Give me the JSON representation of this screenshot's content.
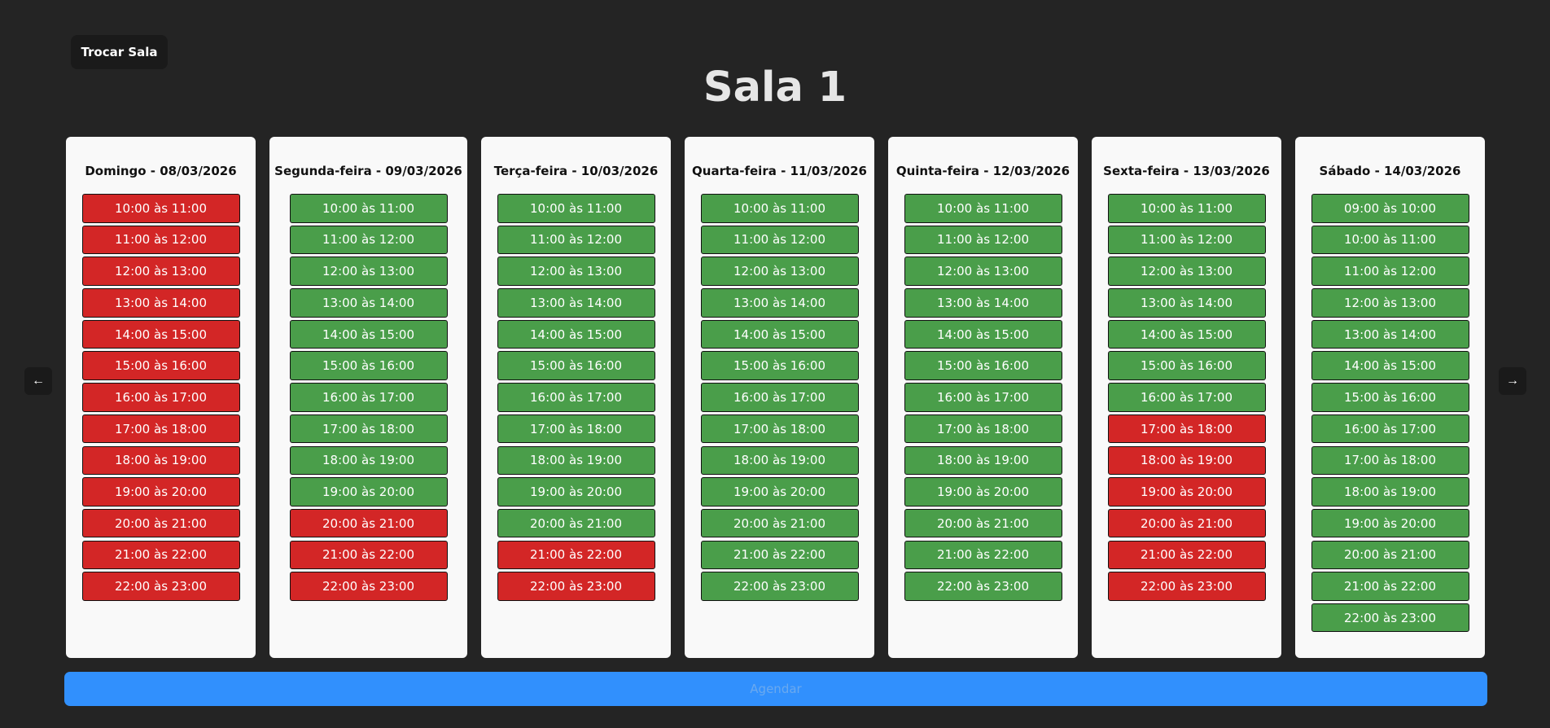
{
  "header": {
    "switch_room_label": "Trocar Sala",
    "room_title": "Sala 1"
  },
  "nav": {
    "prev_label": "←",
    "next_label": "→"
  },
  "schedule_button_label": "Agendar",
  "colors": {
    "free": "#4a9e4a",
    "busy": "#d32626",
    "accent": "#3190fd"
  },
  "days": [
    {
      "title": "Domingo - 08/03/2026",
      "slots": [
        {
          "label": "10:00 às 11:00",
          "status": "busy"
        },
        {
          "label": "11:00 às 12:00",
          "status": "busy"
        },
        {
          "label": "12:00 às 13:00",
          "status": "busy"
        },
        {
          "label": "13:00 às 14:00",
          "status": "busy"
        },
        {
          "label": "14:00 às 15:00",
          "status": "busy"
        },
        {
          "label": "15:00 às 16:00",
          "status": "busy"
        },
        {
          "label": "16:00 às 17:00",
          "status": "busy"
        },
        {
          "label": "17:00 às 18:00",
          "status": "busy"
        },
        {
          "label": "18:00 às 19:00",
          "status": "busy"
        },
        {
          "label": "19:00 às 20:00",
          "status": "busy"
        },
        {
          "label": "20:00 às 21:00",
          "status": "busy"
        },
        {
          "label": "21:00 às 22:00",
          "status": "busy"
        },
        {
          "label": "22:00 às 23:00",
          "status": "busy"
        }
      ]
    },
    {
      "title": "Segunda-feira - 09/03/2026",
      "slots": [
        {
          "label": "10:00 às 11:00",
          "status": "free"
        },
        {
          "label": "11:00 às 12:00",
          "status": "free"
        },
        {
          "label": "12:00 às 13:00",
          "status": "free"
        },
        {
          "label": "13:00 às 14:00",
          "status": "free"
        },
        {
          "label": "14:00 às 15:00",
          "status": "free"
        },
        {
          "label": "15:00 às 16:00",
          "status": "free"
        },
        {
          "label": "16:00 às 17:00",
          "status": "free"
        },
        {
          "label": "17:00 às 18:00",
          "status": "free"
        },
        {
          "label": "18:00 às 19:00",
          "status": "free"
        },
        {
          "label": "19:00 às 20:00",
          "status": "free"
        },
        {
          "label": "20:00 às 21:00",
          "status": "busy"
        },
        {
          "label": "21:00 às 22:00",
          "status": "busy"
        },
        {
          "label": "22:00 às 23:00",
          "status": "busy"
        }
      ]
    },
    {
      "title": "Terça-feira - 10/03/2026",
      "slots": [
        {
          "label": "10:00 às 11:00",
          "status": "free"
        },
        {
          "label": "11:00 às 12:00",
          "status": "free"
        },
        {
          "label": "12:00 às 13:00",
          "status": "free"
        },
        {
          "label": "13:00 às 14:00",
          "status": "free"
        },
        {
          "label": "14:00 às 15:00",
          "status": "free"
        },
        {
          "label": "15:00 às 16:00",
          "status": "free"
        },
        {
          "label": "16:00 às 17:00",
          "status": "free"
        },
        {
          "label": "17:00 às 18:00",
          "status": "free"
        },
        {
          "label": "18:00 às 19:00",
          "status": "free"
        },
        {
          "label": "19:00 às 20:00",
          "status": "free"
        },
        {
          "label": "20:00 às 21:00",
          "status": "free"
        },
        {
          "label": "21:00 às 22:00",
          "status": "busy"
        },
        {
          "label": "22:00 às 23:00",
          "status": "busy"
        }
      ]
    },
    {
      "title": "Quarta-feira - 11/03/2026",
      "slots": [
        {
          "label": "10:00 às 11:00",
          "status": "free"
        },
        {
          "label": "11:00 às 12:00",
          "status": "free"
        },
        {
          "label": "12:00 às 13:00",
          "status": "free"
        },
        {
          "label": "13:00 às 14:00",
          "status": "free"
        },
        {
          "label": "14:00 às 15:00",
          "status": "free"
        },
        {
          "label": "15:00 às 16:00",
          "status": "free"
        },
        {
          "label": "16:00 às 17:00",
          "status": "free"
        },
        {
          "label": "17:00 às 18:00",
          "status": "free"
        },
        {
          "label": "18:00 às 19:00",
          "status": "free"
        },
        {
          "label": "19:00 às 20:00",
          "status": "free"
        },
        {
          "label": "20:00 às 21:00",
          "status": "free"
        },
        {
          "label": "21:00 às 22:00",
          "status": "free"
        },
        {
          "label": "22:00 às 23:00",
          "status": "free"
        }
      ]
    },
    {
      "title": "Quinta-feira - 12/03/2026",
      "slots": [
        {
          "label": "10:00 às 11:00",
          "status": "free"
        },
        {
          "label": "11:00 às 12:00",
          "status": "free"
        },
        {
          "label": "12:00 às 13:00",
          "status": "free"
        },
        {
          "label": "13:00 às 14:00",
          "status": "free"
        },
        {
          "label": "14:00 às 15:00",
          "status": "free"
        },
        {
          "label": "15:00 às 16:00",
          "status": "free"
        },
        {
          "label": "16:00 às 17:00",
          "status": "free"
        },
        {
          "label": "17:00 às 18:00",
          "status": "free"
        },
        {
          "label": "18:00 às 19:00",
          "status": "free"
        },
        {
          "label": "19:00 às 20:00",
          "status": "free"
        },
        {
          "label": "20:00 às 21:00",
          "status": "free"
        },
        {
          "label": "21:00 às 22:00",
          "status": "free"
        },
        {
          "label": "22:00 às 23:00",
          "status": "free"
        }
      ]
    },
    {
      "title": "Sexta-feira - 13/03/2026",
      "slots": [
        {
          "label": "10:00 às 11:00",
          "status": "free"
        },
        {
          "label": "11:00 às 12:00",
          "status": "free"
        },
        {
          "label": "12:00 às 13:00",
          "status": "free"
        },
        {
          "label": "13:00 às 14:00",
          "status": "free"
        },
        {
          "label": "14:00 às 15:00",
          "status": "free"
        },
        {
          "label": "15:00 às 16:00",
          "status": "free"
        },
        {
          "label": "16:00 às 17:00",
          "status": "free"
        },
        {
          "label": "17:00 às 18:00",
          "status": "busy"
        },
        {
          "label": "18:00 às 19:00",
          "status": "busy"
        },
        {
          "label": "19:00 às 20:00",
          "status": "busy"
        },
        {
          "label": "20:00 às 21:00",
          "status": "busy"
        },
        {
          "label": "21:00 às 22:00",
          "status": "busy"
        },
        {
          "label": "22:00 às 23:00",
          "status": "busy"
        }
      ]
    },
    {
      "title": "Sábado - 14/03/2026",
      "slots": [
        {
          "label": "09:00 às 10:00",
          "status": "free"
        },
        {
          "label": "10:00 às 11:00",
          "status": "free"
        },
        {
          "label": "11:00 às 12:00",
          "status": "free"
        },
        {
          "label": "12:00 às 13:00",
          "status": "free"
        },
        {
          "label": "13:00 às 14:00",
          "status": "free"
        },
        {
          "label": "14:00 às 15:00",
          "status": "free"
        },
        {
          "label": "15:00 às 16:00",
          "status": "free"
        },
        {
          "label": "16:00 às 17:00",
          "status": "free"
        },
        {
          "label": "17:00 às 18:00",
          "status": "free"
        },
        {
          "label": "18:00 às 19:00",
          "status": "free"
        },
        {
          "label": "19:00 às 20:00",
          "status": "free"
        },
        {
          "label": "20:00 às 21:00",
          "status": "free"
        },
        {
          "label": "21:00 às 22:00",
          "status": "free"
        },
        {
          "label": "22:00 às 23:00",
          "status": "free"
        }
      ]
    }
  ]
}
